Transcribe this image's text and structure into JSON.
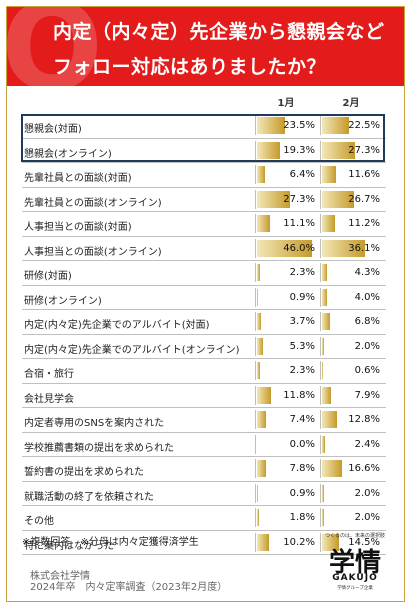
{
  "header": {
    "title_line1": "内定（内々定）先企業から懇親会など",
    "title_line2": "フォロー対応はありましたか？"
  },
  "chart_data": {
    "type": "table",
    "columns": [
      "1月",
      "2月"
    ],
    "rows": [
      {
        "label": "懇親会(対面)",
        "values": [
          23.5,
          22.5
        ],
        "display": [
          "23.5%",
          "22.5%"
        ]
      },
      {
        "label": "懇親会(オンライン)",
        "values": [
          19.3,
          27.3
        ],
        "display": [
          "19.3%",
          "27.3%"
        ]
      },
      {
        "label": "先輩社員との面談(対面)",
        "values": [
          6.4,
          11.6
        ],
        "display": [
          "6.4%",
          "11.6%"
        ]
      },
      {
        "label": "先輩社員との面談(オンライン)",
        "values": [
          27.3,
          26.7
        ],
        "display": [
          "27.3%",
          "26.7%"
        ]
      },
      {
        "label": "人事担当との面談(対面)",
        "values": [
          11.1,
          11.2
        ],
        "display": [
          "11.1%",
          "11.2%"
        ]
      },
      {
        "label": "人事担当との面談(オンライン)",
        "values": [
          46.0,
          36.1
        ],
        "display": [
          "46.0%",
          "36.1%"
        ]
      },
      {
        "label": "研修(対面)",
        "values": [
          2.3,
          4.3
        ],
        "display": [
          "2.3%",
          "4.3%"
        ]
      },
      {
        "label": "研修(オンライン)",
        "values": [
          0.9,
          4.0
        ],
        "display": [
          "0.9%",
          "4.0%"
        ]
      },
      {
        "label": "内定(内々定)先企業でのアルバイト(対面)",
        "values": [
          3.7,
          6.8
        ],
        "display": [
          "3.7%",
          "6.8%"
        ]
      },
      {
        "label": "内定(内々定)先企業でのアルバイト(オンライン)",
        "values": [
          5.3,
          2.0
        ],
        "display": [
          "5.3%",
          "2.0%"
        ]
      },
      {
        "label": "合宿・旅行",
        "values": [
          2.3,
          0.6
        ],
        "display": [
          "2.3%",
          "0.6%"
        ]
      },
      {
        "label": "会社見学会",
        "values": [
          11.8,
          7.9
        ],
        "display": [
          "11.8%",
          "7.9%"
        ]
      },
      {
        "label": "内定者専用のSNSを案内された",
        "values": [
          7.4,
          12.8
        ],
        "display": [
          "7.4%",
          "12.8%"
        ]
      },
      {
        "label": "学校推薦書類の提出を求められた",
        "values": [
          0.0,
          2.4
        ],
        "display": [
          "0.0%",
          "2.4%"
        ]
      },
      {
        "label": "誓約書の提出を求められた",
        "values": [
          7.8,
          16.6
        ],
        "display": [
          "7.8%",
          "16.6%"
        ]
      },
      {
        "label": "就職活動の終了を依頼された",
        "values": [
          0.9,
          2.0
        ],
        "display": [
          "0.9%",
          "2.0%"
        ]
      },
      {
        "label": "その他",
        "values": [
          1.8,
          2.0
        ],
        "display": [
          "1.8%",
          "2.0%"
        ]
      },
      {
        "label": "特に案内はなかった",
        "values": [
          10.2,
          14.5
        ],
        "display": [
          "10.2%",
          "14.5%"
        ]
      }
    ],
    "max_value": 50,
    "bar_color": "#c59a2a"
  },
  "footer": {
    "note": "※複数回答　※分母は内々定獲得済学生",
    "source_line1": "株式会社学情",
    "source_line2": "2024年卒　内々定率調査（2023年2月度）"
  },
  "logo": {
    "tagline": "つくるのは、未来の選択肢",
    "main": "学情",
    "english": "GAKUJO",
    "sub": "学情グループ企業"
  }
}
